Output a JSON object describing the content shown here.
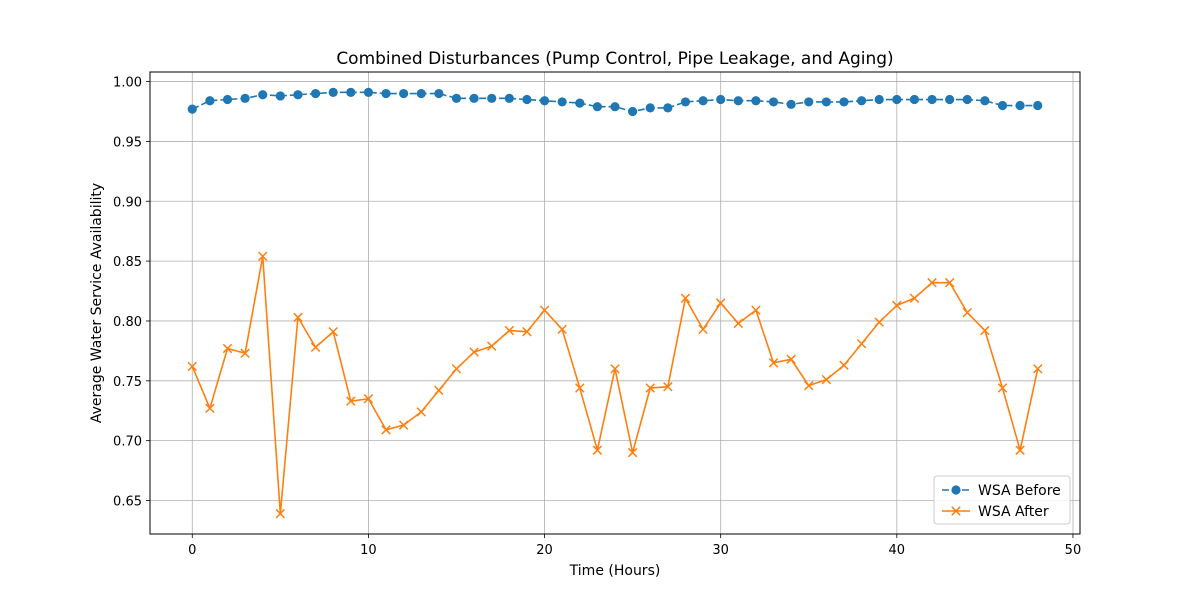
{
  "chart_data": {
    "type": "line",
    "title": "Combined Disturbances (Pump Control, Pipe Leakage, and Aging)",
    "xlabel": "Time (Hours)",
    "ylabel": "Average Water Service Availability",
    "xlim": [
      -2.4,
      50.4
    ],
    "ylim": [
      0.622,
      1.008
    ],
    "x_ticks": [
      0,
      10,
      20,
      30,
      40,
      50
    ],
    "x_tick_labels": [
      "0",
      "10",
      "20",
      "30",
      "40",
      "50"
    ],
    "y_ticks": [
      0.65,
      0.7,
      0.75,
      0.8,
      0.85,
      0.9,
      0.95,
      1.0
    ],
    "y_tick_labels": [
      "0.65",
      "0.70",
      "0.75",
      "0.80",
      "0.85",
      "0.90",
      "0.95",
      "1.00"
    ],
    "grid": true,
    "legend_position": "lower-right",
    "x": [
      0,
      1,
      2,
      3,
      4,
      5,
      6,
      7,
      8,
      9,
      10,
      11,
      12,
      13,
      14,
      15,
      16,
      17,
      18,
      19,
      20,
      21,
      22,
      23,
      24,
      25,
      26,
      27,
      28,
      29,
      30,
      31,
      32,
      33,
      34,
      35,
      36,
      37,
      38,
      39,
      40,
      41,
      42,
      43,
      44,
      45,
      46,
      47,
      48
    ],
    "series": [
      {
        "name": "WSA Before",
        "color": "#1f77b4",
        "line_style": "dashed",
        "marker": "circle",
        "values": [
          0.977,
          0.984,
          0.985,
          0.986,
          0.989,
          0.988,
          0.989,
          0.99,
          0.991,
          0.991,
          0.991,
          0.99,
          0.99,
          0.99,
          0.99,
          0.986,
          0.986,
          0.986,
          0.986,
          0.985,
          0.984,
          0.983,
          0.982,
          0.979,
          0.979,
          0.975,
          0.978,
          0.978,
          0.983,
          0.984,
          0.985,
          0.984,
          0.984,
          0.983,
          0.981,
          0.983,
          0.983,
          0.983,
          0.984,
          0.985,
          0.985,
          0.985,
          0.985,
          0.985,
          0.985,
          0.984,
          0.98,
          0.98,
          0.98
        ]
      },
      {
        "name": "WSA After",
        "color": "#ff7f0e",
        "line_style": "solid",
        "marker": "x",
        "values": [
          0.762,
          0.727,
          0.777,
          0.773,
          0.854,
          0.639,
          0.803,
          0.778,
          0.791,
          0.733,
          0.735,
          0.709,
          0.713,
          0.724,
          0.742,
          0.76,
          0.774,
          0.779,
          0.792,
          0.791,
          0.809,
          0.793,
          0.744,
          0.692,
          0.76,
          0.69,
          0.744,
          0.745,
          0.819,
          0.793,
          0.815,
          0.798,
          0.809,
          0.765,
          0.768,
          0.746,
          0.751,
          0.763,
          0.781,
          0.799,
          0.813,
          0.819,
          0.832,
          0.832,
          0.807,
          0.792,
          0.744,
          0.692,
          0.76
        ]
      }
    ]
  }
}
